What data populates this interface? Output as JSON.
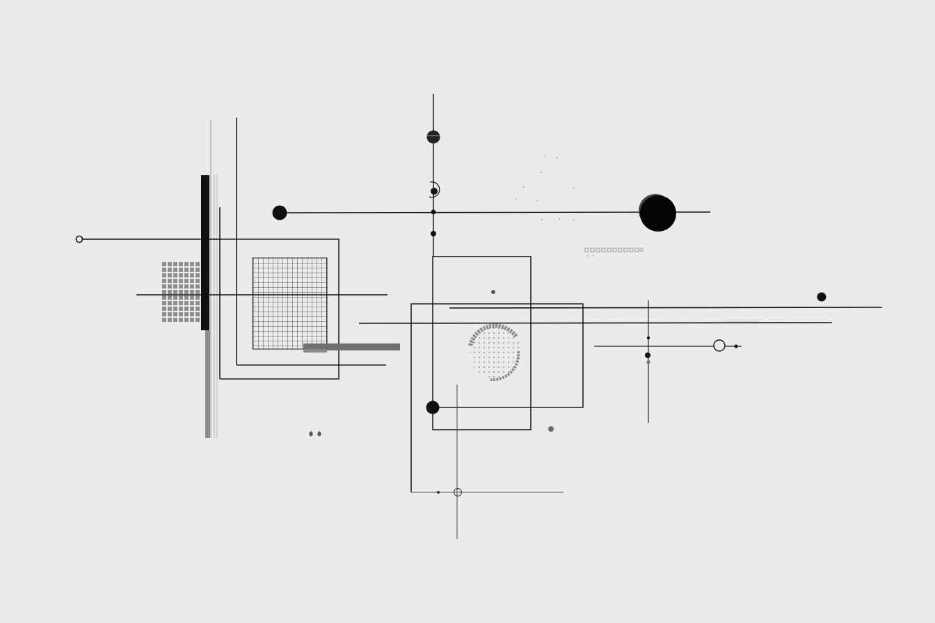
{
  "artwork": {
    "style": "abstract geometric line composition",
    "colors": {
      "background": "#ebebeb",
      "ink": "#111111",
      "mid_gray": "#6e6e6e",
      "light_gray": "#9a9a9a"
    }
  }
}
